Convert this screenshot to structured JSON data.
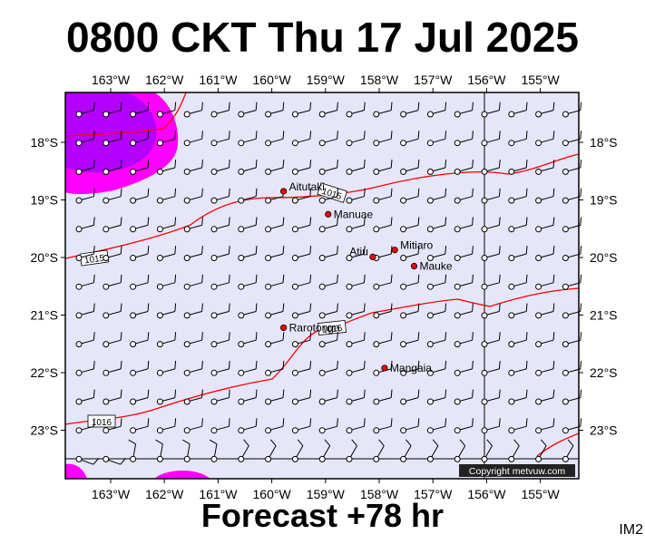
{
  "title": "0800 CKT Thu 17 Jul 2025",
  "forecast": "Forecast +78 hr",
  "image_label": "IM2",
  "copyright": "Copyright metvuw.com",
  "longitudes": [
    "163°W",
    "162°W",
    "161°W",
    "160°W",
    "159°W",
    "158°W",
    "157°W",
    "156°W",
    "155°W"
  ],
  "latitudes": [
    "18°S",
    "19°S",
    "20°S",
    "21°S",
    "22°S",
    "23°S"
  ],
  "places": [
    {
      "name": "Aitutaki",
      "lon": -159.78,
      "lat": -18.85
    },
    {
      "name": "Manuae",
      "lon": -158.95,
      "lat": -19.25
    },
    {
      "name": "Atiu",
      "lon": -158.12,
      "lat": -19.99
    },
    {
      "name": "Mitiaro",
      "lon": -157.71,
      "lat": -19.87
    },
    {
      "name": "Mauke",
      "lon": -157.35,
      "lat": -20.15
    },
    {
      "name": "Rarotonga",
      "lon": -159.78,
      "lat": -21.22
    },
    {
      "name": "Mangaia",
      "lon": -157.9,
      "lat": -21.92
    }
  ],
  "isobar_labels": [
    "1015",
    "1015",
    "1016",
    "1016"
  ],
  "colors": {
    "background": "#e6e6fa",
    "isobar": "#ff0000",
    "rain_light": "#ff00ff",
    "rain_heavy": "#b400ff",
    "land": "#ff0000"
  }
}
